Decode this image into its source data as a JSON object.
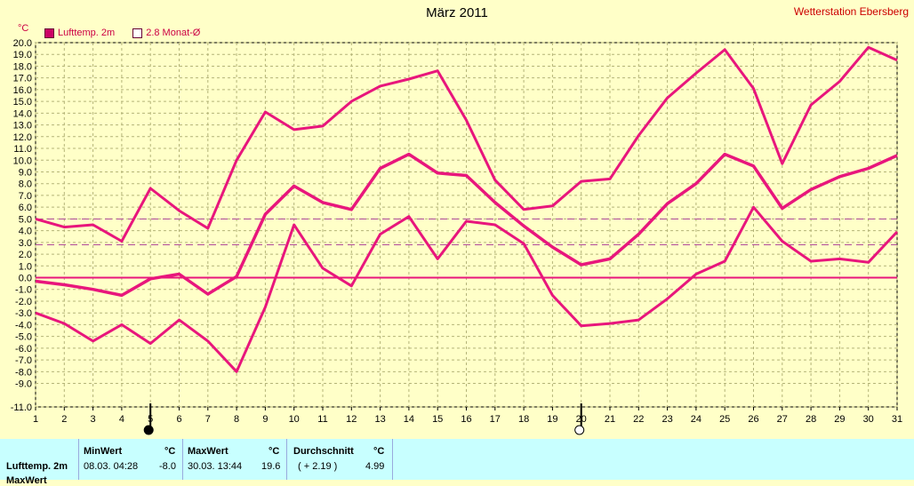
{
  "header": {
    "title": "März 2011",
    "station": "Wetterstation Ebersberg",
    "unit": "°C"
  },
  "legend": {
    "series_label": "Lufttemp. 2m",
    "mean_label": "2.8 Monat-Ø"
  },
  "colors": {
    "series": "#e8167c",
    "grid": "#b4b478",
    "background": "#ffffc8",
    "table_bg": "#c8ffff",
    "station": "#cc0000"
  },
  "chart_data": {
    "type": "line",
    "title": "März 2011",
    "ylabel": "°C",
    "xlabel": "",
    "ylim": [
      -11,
      20
    ],
    "x": [
      1,
      2,
      3,
      4,
      5,
      6,
      7,
      8,
      9,
      10,
      11,
      12,
      13,
      14,
      15,
      16,
      17,
      18,
      19,
      20,
      21,
      22,
      23,
      24,
      25,
      26,
      27,
      28,
      29,
      30,
      31
    ],
    "yticks": [
      "20.0",
      "19.0",
      "18.0",
      "17.0",
      "16.0",
      "15.0",
      "14.0",
      "13.0",
      "12.0",
      "11.0",
      "10.0",
      "9.0",
      "8.0",
      "7.0",
      "6.0",
      "5.0",
      "4.0",
      "3.0",
      "2.0",
      "1.0",
      "0.0",
      "-1.0",
      "-2.0",
      "-3.0",
      "-4.0",
      "-5.0",
      "-6.0",
      "-7.0",
      "-8.0",
      "-9.0",
      "-11.0"
    ],
    "series": [
      {
        "name": "max",
        "values": [
          5.0,
          4.3,
          4.5,
          3.1,
          7.6,
          5.7,
          4.2,
          10.0,
          14.1,
          12.6,
          12.9,
          15.0,
          16.3,
          16.9,
          17.6,
          13.4,
          8.3,
          5.8,
          6.1,
          8.2,
          8.4,
          12.1,
          15.3,
          17.4,
          19.4,
          16.1,
          9.7,
          14.7,
          16.7,
          19.6,
          18.5
        ]
      },
      {
        "name": "mean",
        "values": [
          -0.3,
          -0.6,
          -1.0,
          -1.5,
          -0.1,
          0.3,
          -1.4,
          0.1,
          5.4,
          7.8,
          6.4,
          5.8,
          9.3,
          10.5,
          8.9,
          8.7,
          6.4,
          4.4,
          2.6,
          1.1,
          1.6,
          3.7,
          6.3,
          8.0,
          10.5,
          9.5,
          5.9,
          7.5,
          8.6,
          9.3,
          10.4
        ]
      },
      {
        "name": "min",
        "values": [
          -3.0,
          -3.9,
          -5.4,
          -4.0,
          -5.6,
          -3.6,
          -5.4,
          -8.0,
          -2.5,
          4.5,
          0.8,
          -0.7,
          3.7,
          5.2,
          1.6,
          4.8,
          4.5,
          2.9,
          -1.5,
          -4.1,
          -3.9,
          -3.6,
          -1.8,
          0.3,
          1.4,
          6.0,
          3.1,
          1.4,
          1.6,
          1.3,
          3.9
        ]
      }
    ],
    "reference_lines": [
      {
        "label": "2.8 Monat-Ø",
        "value": 2.8,
        "style": "dashed"
      },
      {
        "label": "",
        "value": 4.99,
        "style": "dashed"
      },
      {
        "label": "",
        "value": 0.0,
        "style": "solid"
      }
    ],
    "moon_markers": [
      {
        "day": 5,
        "phase": "new"
      },
      {
        "day": 20,
        "phase": "full"
      }
    ],
    "grid": true,
    "legend_position": "top-left"
  },
  "table": {
    "row_label": "Lufttemp. 2m",
    "row_label_2": "MaxWert",
    "headers": {
      "min": "MinWert",
      "max": "MaxWert",
      "avg": "Durchschnitt",
      "unit": "°C"
    },
    "min_datetime": "08.03.  04:28",
    "min_value": "-8.0",
    "max_datetime": "30.03.  13:44",
    "max_value": "19.6",
    "avg_delta": "( + 2.19 )",
    "avg_value": "4.99"
  }
}
